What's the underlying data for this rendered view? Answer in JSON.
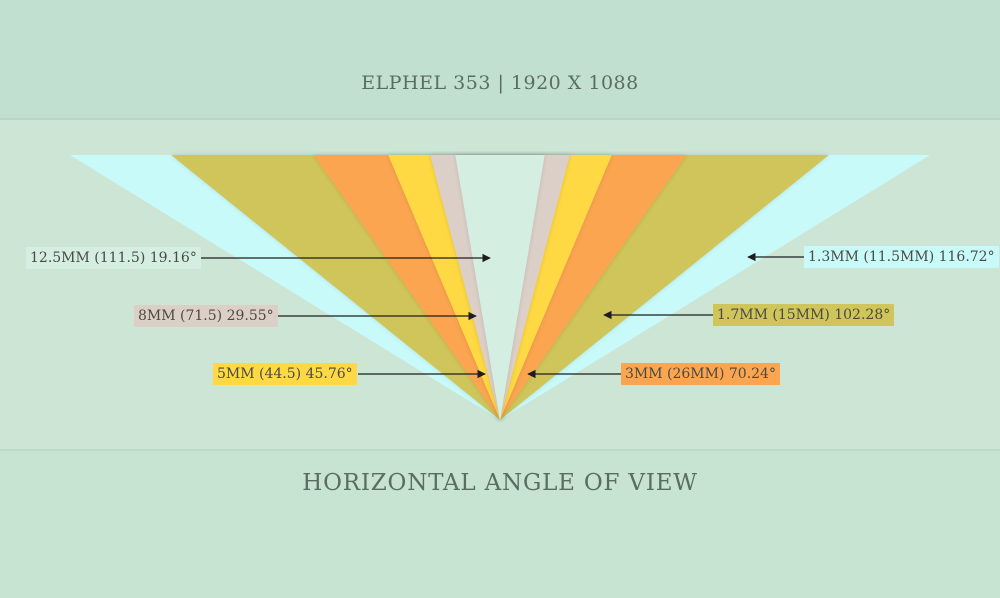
{
  "header": {
    "title": "ELPHEL 353 | 1920 X 1088"
  },
  "footer": {
    "title": "HORIZONTAL ANGLE OF VIEW"
  },
  "colors": {
    "background": "#cce5d5",
    "lens_1_3mm": "#c9fafa",
    "lens_1_7mm": "#cfc55a",
    "lens_3mm": "#fba551",
    "lens_5mm": "#fed943",
    "lens_8mm": "#dccfc8",
    "lens_12_5mm": "#d5eee2"
  },
  "lenses": [
    {
      "id": "1.3mm",
      "label": "1.3MM (11.5MM) 116.72°",
      "angle_deg": 116.72,
      "color": "#c9fafa"
    },
    {
      "id": "1.7mm",
      "label": "1.7MM (15MM) 102.28°",
      "angle_deg": 102.28,
      "color": "#cfc55a"
    },
    {
      "id": "3mm",
      "label": "3MM (26MM) 70.24°",
      "angle_deg": 70.24,
      "color": "#fba551"
    },
    {
      "id": "5mm",
      "label": "5MM (44.5) 45.76°",
      "angle_deg": 45.76,
      "color": "#fed943"
    },
    {
      "id": "8mm",
      "label": "8MM (71.5) 29.55°",
      "angle_deg": 29.55,
      "color": "#dccfc8"
    },
    {
      "id": "12.5mm",
      "label": "12.5MM (111.5) 19.16°",
      "angle_deg": 19.16,
      "color": "#d5eee2"
    }
  ]
}
